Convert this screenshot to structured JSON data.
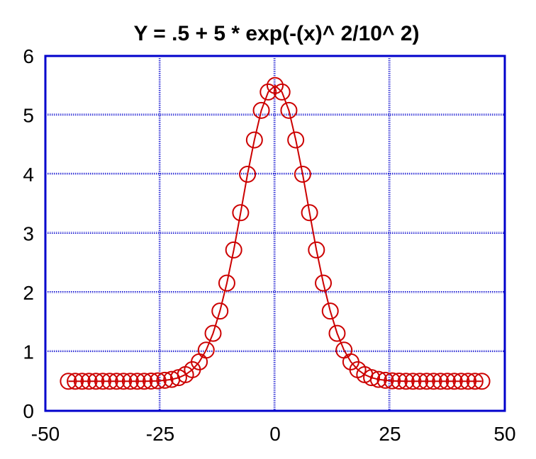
{
  "chart_data": {
    "type": "scatter",
    "title": "Y = .5 + 5 * exp(-(x)^ 2/10^ 2)",
    "xlabel": "",
    "ylabel": "",
    "xlim": [
      -50,
      50
    ],
    "ylim": [
      0,
      6
    ],
    "xticks": [
      "-50",
      "-25",
      "0",
      "25",
      "50"
    ],
    "yticks": [
      "0",
      "1",
      "2",
      "3",
      "4",
      "5",
      "6"
    ],
    "xtick_values": [
      -50,
      -25,
      0,
      25,
      50
    ],
    "ytick_values": [
      0,
      1,
      2,
      3,
      4,
      5,
      6
    ],
    "grid": true,
    "legend": "none",
    "colors": {
      "series": "#cc0000",
      "grid": "#0000cc",
      "axes": "#0000cc"
    },
    "series": [
      {
        "marker": "open-circle",
        "line": true,
        "x": [
          -45,
          -43.5,
          -42,
          -40.5,
          -39,
          -37.5,
          -36,
          -34.5,
          -33,
          -31.5,
          -30,
          -28.5,
          -27,
          -25.5,
          -24,
          -22.5,
          -21,
          -19.5,
          -18,
          -16.5,
          -15,
          -13.5,
          -12,
          -10.5,
          -9,
          -7.5,
          -6,
          -4.5,
          -3,
          -1.5,
          0,
          1.5,
          3,
          4.5,
          6,
          7.5,
          9,
          10.5,
          12,
          13.5,
          15,
          16.5,
          18,
          19.5,
          21,
          22.5,
          24,
          25.5,
          27,
          28.5,
          30,
          31.5,
          33,
          34.5,
          36,
          37.5,
          39,
          40.5,
          42,
          43.5,
          45
        ],
        "y": [
          0.5,
          0.5,
          0.5,
          0.5,
          0.5,
          0.5,
          0.5,
          0.5,
          0.5,
          0.5,
          0.5,
          0.5,
          0.503,
          0.507,
          0.516,
          0.532,
          0.561,
          0.612,
          0.696,
          0.828,
          1.027,
          1.31,
          1.687,
          2.16,
          2.72,
          3.35,
          4.0,
          4.58,
          5.08,
          5.39,
          5.5,
          5.39,
          5.08,
          4.58,
          4.0,
          3.35,
          2.72,
          2.16,
          1.687,
          1.31,
          1.027,
          0.828,
          0.696,
          0.612,
          0.561,
          0.532,
          0.516,
          0.507,
          0.503,
          0.5,
          0.5,
          0.5,
          0.5,
          0.5,
          0.5,
          0.5,
          0.5,
          0.5,
          0.5,
          0.5,
          0.5
        ]
      }
    ]
  }
}
